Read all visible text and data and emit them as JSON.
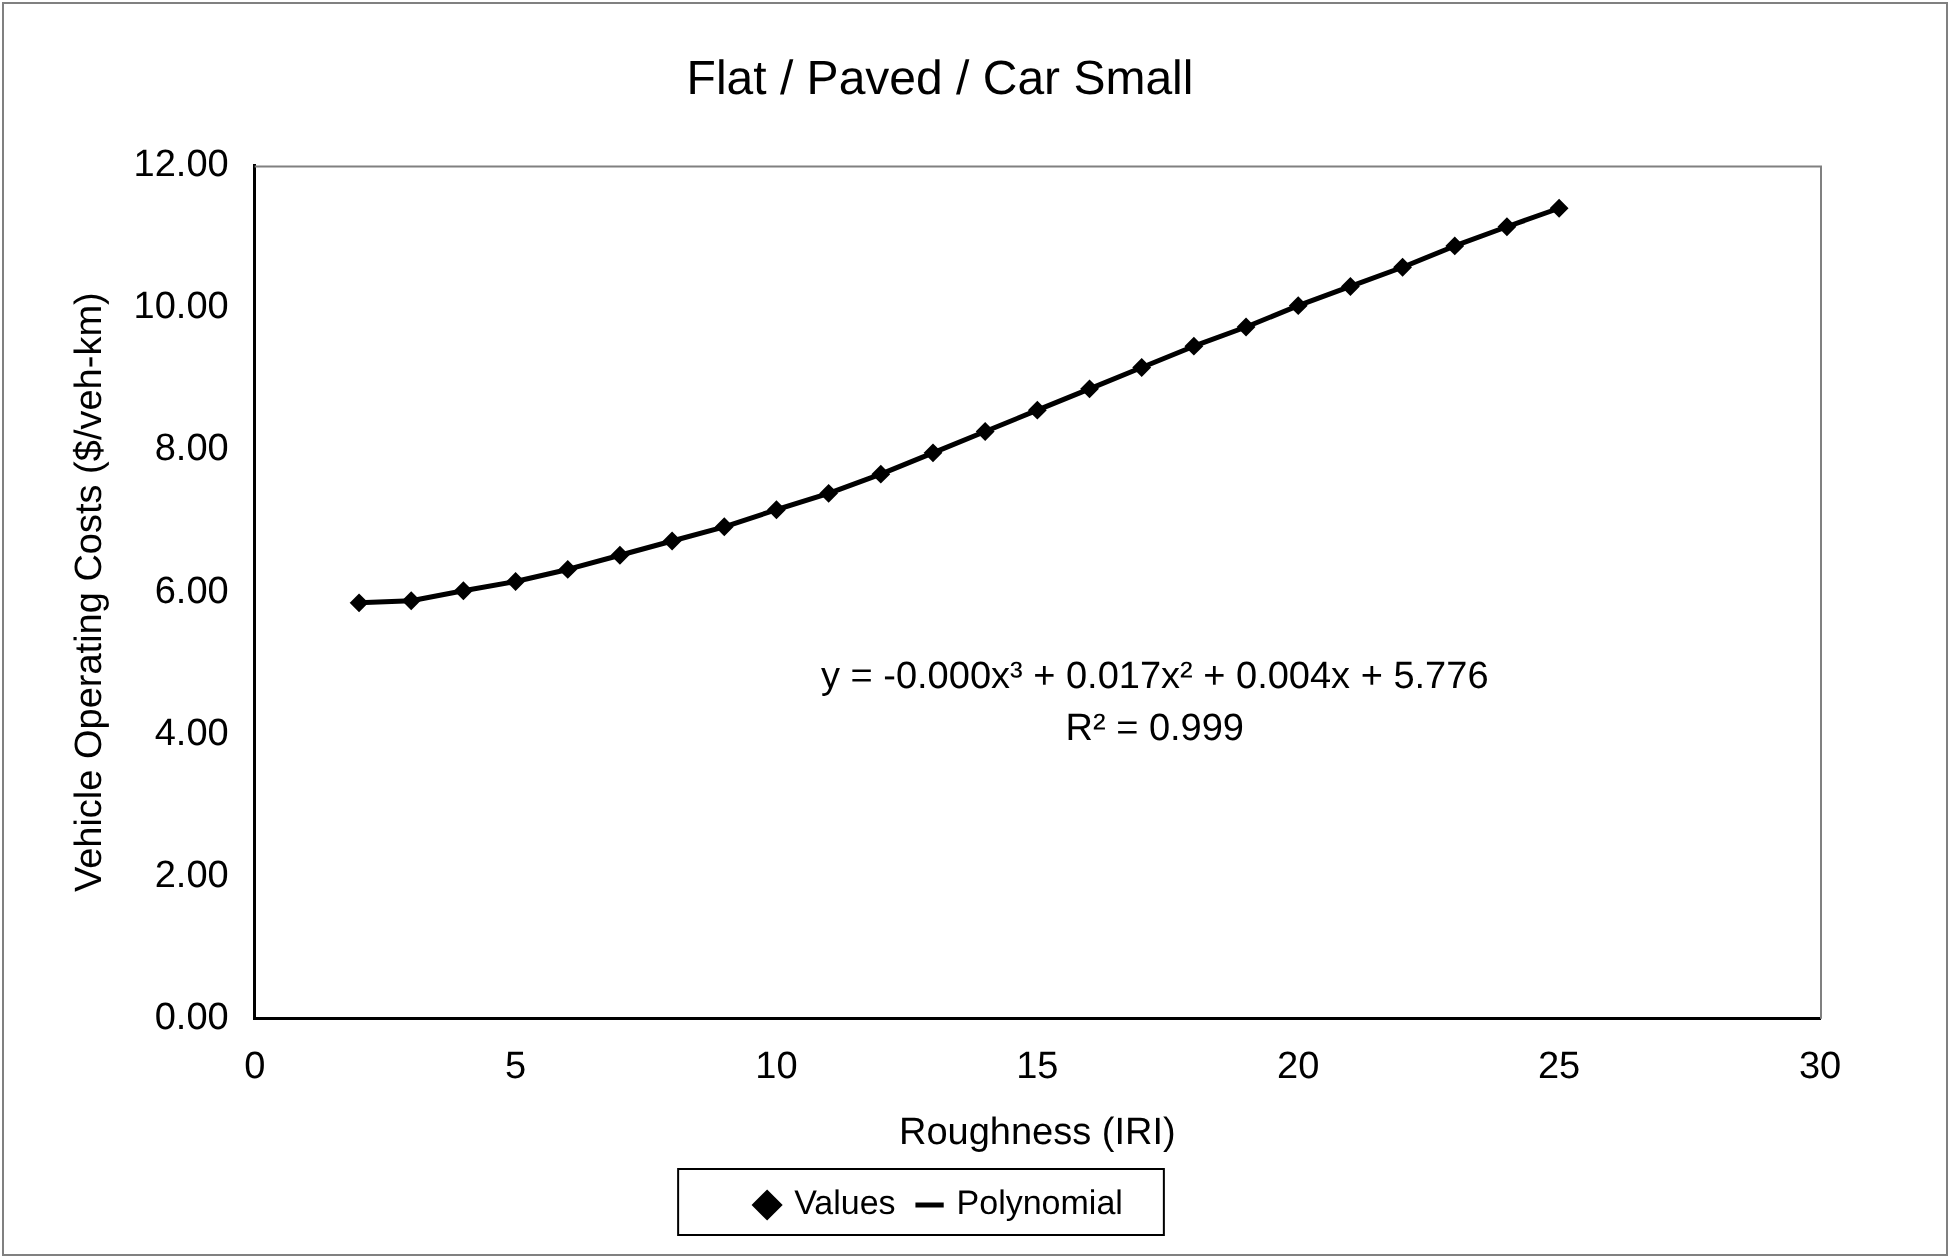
{
  "chart_data": {
    "type": "scatter",
    "title": "Flat / Paved / Car Small",
    "xlabel": "Roughness (IRI)",
    "ylabel": "Vehicle Operating Costs ($/veh-km)",
    "x": [
      2,
      3,
      4,
      5,
      6,
      7,
      8,
      9,
      10,
      11,
      12,
      13,
      14,
      15,
      16,
      17,
      18,
      19,
      20,
      21,
      22,
      23,
      24,
      25
    ],
    "series": [
      {
        "name": "Values",
        "color": "#000000",
        "marker": "diamond",
        "values": [
          5.85,
          5.88,
          6.02,
          6.15,
          6.32,
          6.52,
          6.72,
          6.92,
          7.16,
          7.39,
          7.66,
          7.96,
          8.26,
          8.56,
          8.86,
          9.16,
          9.46,
          9.73,
          10.03,
          10.3,
          10.57,
          10.87,
          11.14,
          11.4
        ]
      },
      {
        "name": "Polynomial",
        "type": "line",
        "color": "#000000",
        "marker": "none",
        "line_style": "solid",
        "x": [
          2,
          3,
          4,
          5,
          6,
          7,
          8,
          9,
          10,
          11,
          12,
          13,
          14,
          15,
          16,
          17,
          18,
          19,
          20,
          21,
          22,
          23,
          24,
          25
        ],
        "values": [
          5.85,
          5.88,
          6.02,
          6.15,
          6.32,
          6.52,
          6.72,
          6.92,
          7.16,
          7.39,
          7.66,
          7.96,
          8.26,
          8.56,
          8.86,
          9.16,
          9.46,
          9.73,
          10.03,
          10.3,
          10.57,
          10.87,
          11.14,
          11.4
        ]
      }
    ],
    "xlim": [
      0,
      30
    ],
    "xticks": [
      0,
      5,
      10,
      15,
      20,
      25,
      30
    ],
    "ylim": [
      0,
      12
    ],
    "yticks": [
      {
        "value": 0,
        "label": "0.00"
      },
      {
        "value": 2,
        "label": "2.00"
      },
      {
        "value": 4,
        "label": "4.00"
      },
      {
        "value": 6,
        "label": "6.00"
      },
      {
        "value": 8,
        "label": "8.00"
      },
      {
        "value": 10,
        "label": "10.00"
      },
      {
        "value": 12,
        "label": "12.00"
      }
    ],
    "annotations": [
      "y = -0.000x³ + 0.017x² + 0.004x + 5.776",
      "R² = 0.999"
    ],
    "grid": false,
    "legend": "bottom"
  }
}
